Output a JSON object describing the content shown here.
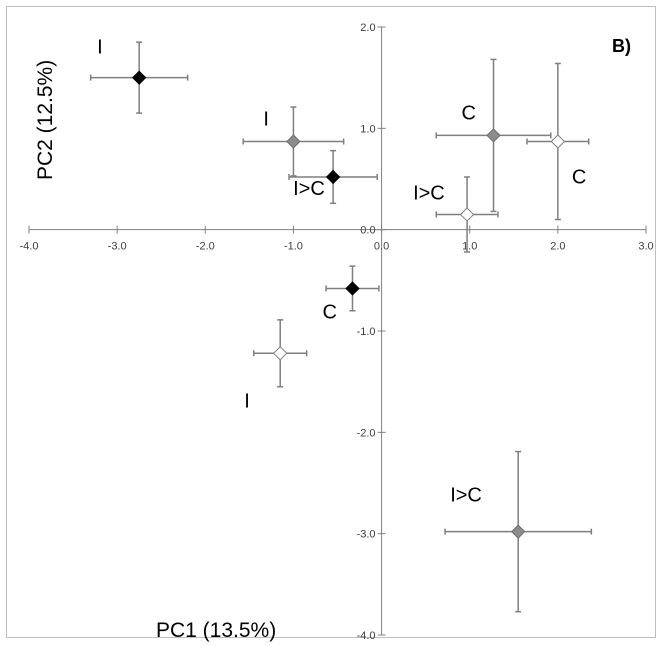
{
  "chart_data": {
    "type": "scatter",
    "panel_label": "B)",
    "xlabel": "PC1 (13.5%)",
    "ylabel": "PC2 (12.5%)",
    "xlim": [
      -4.0,
      3.0
    ],
    "ylim": [
      -4.0,
      2.0
    ],
    "x_ticks": [
      "-4.0",
      "-3.0",
      "-2.0",
      "-1.0",
      "0.0",
      "1.0",
      "2.0",
      "3.0"
    ],
    "y_ticks": [
      "2.0",
      "1.0",
      "0.0",
      "-1.0",
      "-2.0",
      "-3.0",
      "-4.0"
    ],
    "grid": false,
    "points": [
      {
        "label": "I",
        "marker": "black",
        "x": -2.75,
        "y": 1.5,
        "xerr": 0.55,
        "yerr": 0.35
      },
      {
        "label": "I",
        "marker": "gray",
        "x": -1.0,
        "y": 0.87,
        "xerr": 0.57,
        "yerr": 0.34
      },
      {
        "label": "I>C",
        "marker": "black",
        "x": -0.55,
        "y": 0.52,
        "xerr": 0.5,
        "yerr": 0.26
      },
      {
        "label": "C",
        "marker": "gray",
        "x": 1.27,
        "y": 0.93,
        "xerr": 0.65,
        "yerr": 0.75
      },
      {
        "label": "C",
        "marker": "white",
        "x": 2.0,
        "y": 0.87,
        "xerr": 0.35,
        "yerr": 0.77
      },
      {
        "label": "I>C",
        "marker": "white",
        "x": 0.97,
        "y": 0.15,
        "xerr": 0.35,
        "yerr": 0.37
      },
      {
        "label": "C",
        "marker": "black",
        "x": -0.33,
        "y": -0.58,
        "xerr": 0.3,
        "yerr": 0.22
      },
      {
        "label": "I",
        "marker": "white",
        "x": -1.15,
        "y": -1.22,
        "xerr": 0.3,
        "yerr": 0.33
      },
      {
        "label": "I>C",
        "marker": "gray",
        "x": 1.55,
        "y": -2.98,
        "xerr": 0.83,
        "yerr": 0.79
      }
    ],
    "colors": {
      "black": "#000000",
      "gray": "#8c8c8c",
      "white": "#ffffff",
      "errorbar": "#7f7f7f",
      "axis": "#808080"
    }
  }
}
